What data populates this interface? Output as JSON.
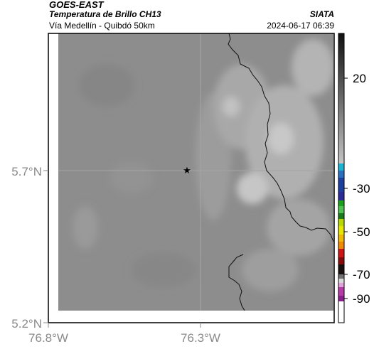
{
  "header": {
    "satellite": "GOES-EAST",
    "product": "Temperatura de Brillo CH13",
    "location": "Vía Medellín - Quibdó 50km",
    "organization": "SIATA",
    "timestamp": "2024-06-17 06:39"
  },
  "map": {
    "y_ticks": [
      "5.7°N",
      "5.2°N"
    ],
    "x_ticks": [
      "76.8°W",
      "76.3°W"
    ],
    "marker": "star-marker",
    "frame_color": "#000000",
    "background_gray": "#8d8d8d",
    "boundary_color": "#111111"
  },
  "colorbar": {
    "tick_labels": [
      "20",
      "-30",
      "-50",
      "-70",
      "-90"
    ],
    "colors": {
      "gray_top": "#101010",
      "gray_mid": "#bdbdbd",
      "cyan": "#19b4d2",
      "blue": "#1b3fa0",
      "green": "#1aa31a",
      "yellow": "#e6e600",
      "orange": "#f08a00",
      "red": "#d01414",
      "dark": "#1a1010",
      "magenta": "#b83aa8"
    }
  }
}
